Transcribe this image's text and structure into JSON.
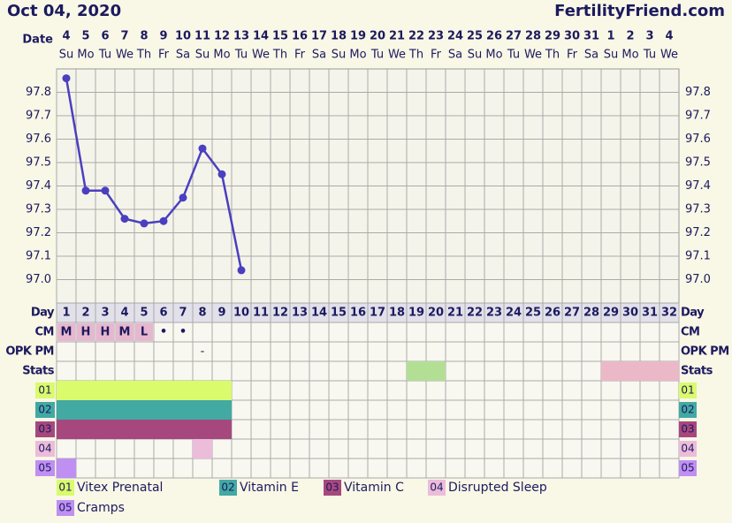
{
  "header": {
    "date": "Oct 04, 2020",
    "site": "FertilityFriend.com"
  },
  "chart_data": {
    "type": "line",
    "date_label": "Date",
    "categories": [
      "4",
      "5",
      "6",
      "7",
      "8",
      "9",
      "10",
      "11",
      "12",
      "13",
      "14",
      "15",
      "16",
      "17",
      "18",
      "19",
      "20",
      "21",
      "22",
      "23",
      "24",
      "25",
      "26",
      "27",
      "28",
      "29",
      "30",
      "31",
      "1",
      "2",
      "3",
      "4"
    ],
    "weekdays": [
      "Su",
      "Mo",
      "Tu",
      "We",
      "Th",
      "Fr",
      "Sa",
      "Su",
      "Mo",
      "Tu",
      "We",
      "Th",
      "Fr",
      "Sa",
      "Su",
      "Mo",
      "Tu",
      "We",
      "Th",
      "Fr",
      "Sa",
      "Su",
      "Mo",
      "Tu",
      "We",
      "Th",
      "Fr",
      "Sa",
      "Su",
      "Mo",
      "Tu",
      "We"
    ],
    "values": [
      97.86,
      97.38,
      97.38,
      97.26,
      97.24,
      97.25,
      97.35,
      97.56,
      97.45,
      97.04,
      null,
      null,
      null,
      null,
      null,
      null,
      null,
      null,
      null,
      null,
      null,
      null,
      null,
      null,
      null,
      null,
      null,
      null,
      null,
      null,
      null,
      null
    ],
    "color": "#4a3fc0",
    "ylim": [
      96.9,
      97.9
    ],
    "yticks": [
      {
        "value": 97,
        "label": "97.0"
      },
      97.1,
      97.2,
      97.3,
      97.4,
      97.5,
      97.6,
      97.7,
      97.8
    ],
    "grid": true
  },
  "rows": {
    "day": {
      "label": "Day",
      "cycle_days": [
        "1",
        "2",
        "3",
        "4",
        "5",
        "6",
        "7",
        "8",
        "9",
        "10",
        "11",
        "12",
        "13",
        "14",
        "15",
        "16",
        "17",
        "18",
        "19",
        "20",
        "21",
        "22",
        "23",
        "24",
        "25",
        "26",
        "27",
        "28",
        "29",
        "30",
        "31",
        "32"
      ]
    },
    "cm": {
      "label": "CM",
      "entries": [
        "M",
        "H",
        "H",
        "M",
        "L",
        "•",
        "•",
        null,
        null,
        null,
        null,
        null,
        null,
        null,
        null,
        null,
        null,
        null,
        null,
        null,
        null,
        null,
        null,
        null,
        null,
        null,
        null,
        null,
        null,
        null,
        null,
        null
      ],
      "color": "#e7b7cf"
    },
    "opk": {
      "label": "OPK PM",
      "entries": [
        null,
        null,
        null,
        null,
        null,
        null,
        null,
        "-",
        null,
        null,
        null,
        null,
        null,
        null,
        null,
        null,
        null,
        null,
        null,
        null,
        null,
        null,
        null,
        null,
        null,
        null,
        null,
        null,
        null,
        null,
        null,
        null
      ]
    },
    "stats": {
      "label": "Stats",
      "cells": [
        {
          "days": [
            19,
            20
          ],
          "color": "#b3df95"
        },
        {
          "days": [
            29,
            30,
            31,
            32
          ],
          "color": "#ebb8c8"
        }
      ]
    }
  },
  "items": [
    {
      "code": "01",
      "name": "Vitex Prenatal",
      "color": "#d9fb6c",
      "days": [
        1,
        2,
        3,
        4,
        5,
        6,
        7,
        8,
        9
      ]
    },
    {
      "code": "02",
      "name": "Vitamin E",
      "color": "#42a9a3",
      "days": [
        1,
        2,
        3,
        4,
        5,
        6,
        7,
        8,
        9
      ]
    },
    {
      "code": "03",
      "name": "Vitamin C",
      "color": "#a6487e",
      "days": [
        1,
        2,
        3,
        4,
        5,
        6,
        7,
        8,
        9
      ]
    },
    {
      "code": "04",
      "name": "Disrupted Sleep",
      "color": "#ecbcdb",
      "days": [
        8
      ]
    },
    {
      "code": "05",
      "name": "Cramps",
      "color": "#bf8ff2",
      "days": [
        1
      ]
    }
  ]
}
